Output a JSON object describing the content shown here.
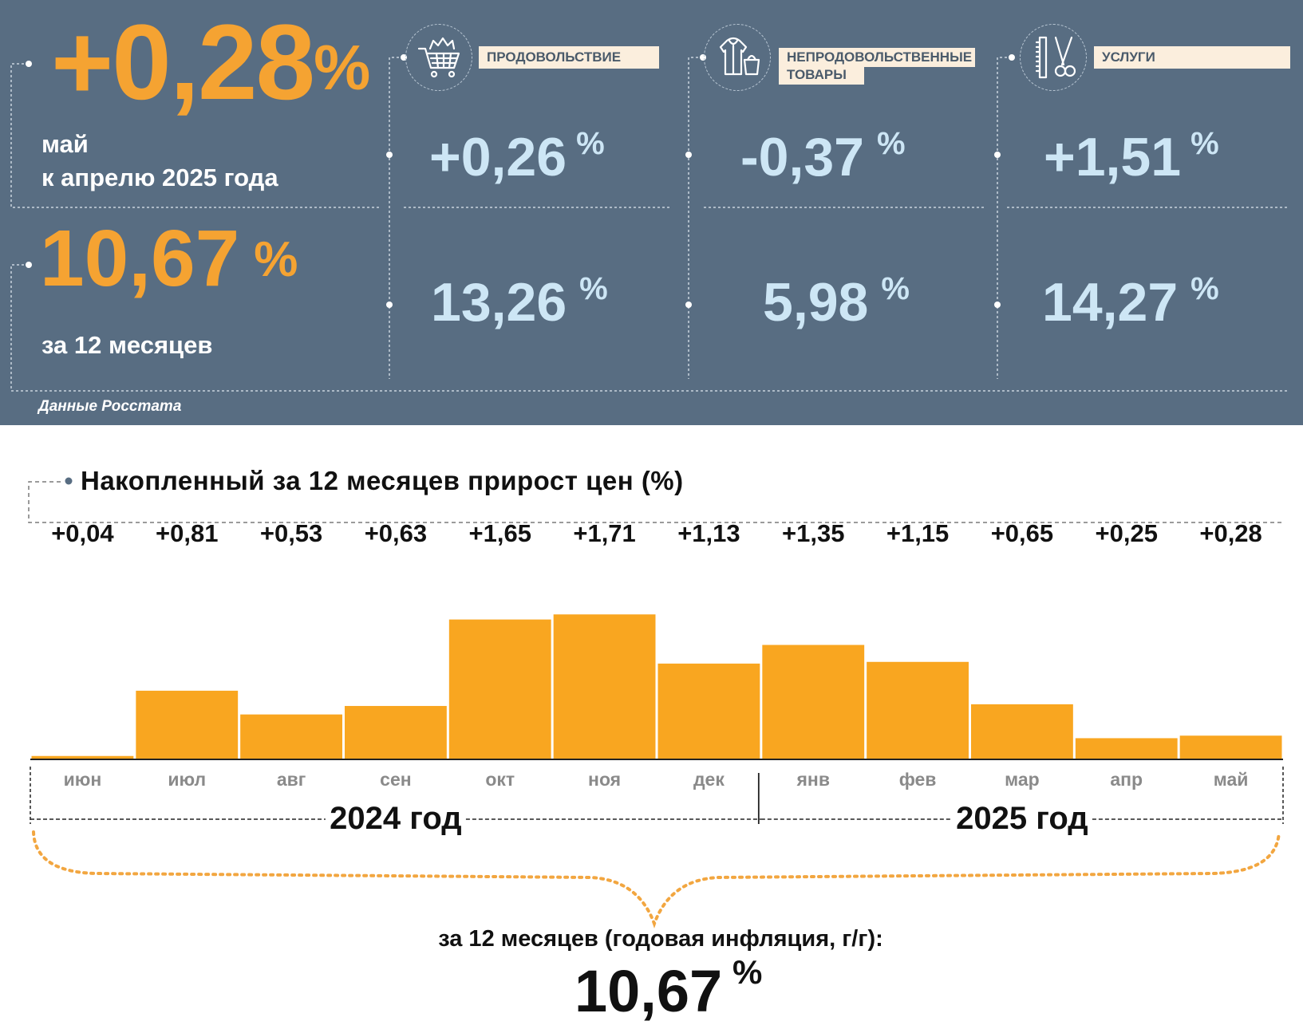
{
  "header": {
    "month_value": "+0,28",
    "month_unit": "%",
    "month_line1": "май",
    "month_line2": "к апрелю 2025 года",
    "year_value": "10,67",
    "year_unit": "%",
    "year_label": "за 12 месяцев",
    "source": "Данные Росстата"
  },
  "categories": [
    {
      "label": "ПРОДОВОЛЬСТВИЕ",
      "icon": "shopping-cart-icon",
      "monthly": "+0,26",
      "yearly": "13,26",
      "unit": "%"
    },
    {
      "label_line1": "НЕПРОДОВОЛЬСТВЕННЫЕ",
      "label_line2": "ТОВАРЫ",
      "icon": "clothes-bag-icon",
      "monthly": "-0,37",
      "yearly": "5,98",
      "unit": "%"
    },
    {
      "label": "УСЛУГИ",
      "icon": "scissors-comb-icon",
      "monthly": "+1,51",
      "yearly": "14,27",
      "unit": "%"
    }
  ],
  "colors": {
    "panel": "#586d82",
    "accent": "#f5a332",
    "light_blue": "#cde6f5",
    "bar": "#f9a620",
    "label_bg": "#fbeedd"
  },
  "chart_data": {
    "type": "bar",
    "title": "Накопленный за 12 месяцев прирост цен (%)",
    "categories": [
      "июн",
      "июл",
      "авг",
      "сен",
      "окт",
      "ноя",
      "дек",
      "янв",
      "фев",
      "мар",
      "апр",
      "май"
    ],
    "values": [
      0.04,
      0.81,
      0.53,
      0.63,
      1.65,
      1.71,
      1.13,
      1.35,
      1.15,
      0.65,
      0.25,
      0.28
    ],
    "value_labels": [
      "+0,04",
      "+0,81",
      "+0,53",
      "+0,63",
      "+1,65",
      "+1,71",
      "+1,13",
      "+1,35",
      "+1,15",
      "+0,65",
      "+0,25",
      "+0,28"
    ],
    "groups": [
      {
        "label": "2024 год",
        "months": 7
      },
      {
        "label": "2025 год",
        "months": 5
      }
    ],
    "ylim": [
      0,
      1.8
    ],
    "grid": false,
    "summary_label": "за 12 месяцев (годовая инфляция, г/г):",
    "summary_value": "10,67",
    "summary_unit": "%"
  }
}
